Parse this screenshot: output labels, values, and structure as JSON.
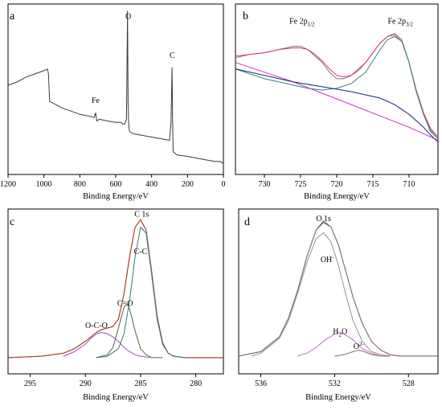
{
  "figure": {
    "background": "#ffffff"
  },
  "chart_data": [
    {
      "panel": "a",
      "type": "line",
      "xlabel": "Binding Energy/eV",
      "ylabel": "",
      "xlim": [
        1200,
        0
      ],
      "ylim": [
        0,
        1
      ],
      "xticks": [
        1200,
        1000,
        800,
        600,
        400,
        200,
        0
      ],
      "yticks": [],
      "grid": false,
      "annotations": [
        {
          "text": "O",
          "x": 530,
          "y": 0.94
        },
        {
          "text": "C",
          "x": 285,
          "y": 0.7
        },
        {
          "text": "Fe",
          "x": 712,
          "y": 0.42
        }
      ],
      "series": [
        {
          "color": "#3a3a3a",
          "x": [
            1200,
            1150,
            1100,
            1050,
            1000,
            980,
            975,
            968,
            950,
            900,
            850,
            800,
            750,
            720,
            712,
            705,
            690,
            650,
            600,
            570,
            560,
            550,
            540,
            534,
            531,
            528,
            525,
            520,
            500,
            450,
            400,
            350,
            300,
            292,
            286,
            283,
            280,
            270,
            260,
            200,
            150,
            100,
            50,
            20,
            5,
            0
          ],
          "y": [
            0.53,
            0.55,
            0.58,
            0.6,
            0.62,
            0.63,
            0.6,
            0.43,
            0.42,
            0.39,
            0.37,
            0.35,
            0.34,
            0.33,
            0.36,
            0.31,
            0.32,
            0.31,
            0.3,
            0.3,
            0.29,
            0.29,
            0.32,
            0.99,
            0.42,
            0.3,
            0.25,
            0.24,
            0.23,
            0.22,
            0.21,
            0.2,
            0.19,
            0.3,
            0.64,
            0.3,
            0.12,
            0.11,
            0.1,
            0.09,
            0.08,
            0.07,
            0.06,
            0.06,
            0.05,
            0.05
          ]
        }
      ]
    },
    {
      "panel": "b",
      "type": "line",
      "xlabel": "Binding Energy/eV",
      "ylabel": "",
      "xlim": [
        734,
        706
      ],
      "ylim": [
        0,
        1
      ],
      "xticks": [
        730,
        725,
        720,
        715,
        710
      ],
      "yticks": [],
      "grid": false,
      "annotations": [
        {
          "text": "Fe 2p",
          "sub": "1/2",
          "x": 724.8,
          "y": 0.9
        },
        {
          "text": "Fe 2p",
          "sub": "3/2",
          "x": 711.2,
          "y": 0.9
        }
      ],
      "series": [
        {
          "color": "#777777",
          "x": [
            734,
            732,
            730,
            728,
            726,
            725,
            724,
            723,
            722,
            721,
            720,
            719,
            718,
            717,
            716,
            715,
            714,
            713,
            712,
            711,
            710,
            709,
            708,
            707,
            706
          ],
          "y": [
            0.69,
            0.71,
            0.72,
            0.74,
            0.76,
            0.76,
            0.74,
            0.7,
            0.66,
            0.6,
            0.56,
            0.56,
            0.58,
            0.62,
            0.66,
            0.72,
            0.78,
            0.82,
            0.84,
            0.8,
            0.66,
            0.48,
            0.34,
            0.24,
            0.2
          ]
        },
        {
          "color": "#e0386a",
          "x": [
            734,
            732,
            730,
            728,
            726,
            725,
            724,
            723,
            722,
            721,
            720,
            719,
            718,
            717,
            716,
            715,
            714,
            713,
            712,
            711,
            710,
            709,
            708,
            707,
            706
          ],
          "y": [
            0.7,
            0.71,
            0.72,
            0.74,
            0.75,
            0.75,
            0.74,
            0.71,
            0.67,
            0.62,
            0.58,
            0.57,
            0.58,
            0.61,
            0.66,
            0.72,
            0.78,
            0.82,
            0.83,
            0.79,
            0.66,
            0.49,
            0.35,
            0.25,
            0.2
          ]
        },
        {
          "color": "#2e8a7a",
          "x": [
            734,
            730,
            726,
            724,
            722,
            720,
            718,
            716,
            714,
            713,
            712,
            711,
            710,
            709,
            708,
            707,
            706
          ],
          "y": [
            0.62,
            0.56,
            0.52,
            0.5,
            0.49,
            0.5,
            0.53,
            0.6,
            0.74,
            0.8,
            0.82,
            0.79,
            0.66,
            0.48,
            0.34,
            0.23,
            0.19
          ]
        },
        {
          "color": "#cc33cc",
          "x": [
            734,
            730,
            726,
            722,
            718,
            714,
            710,
            708,
            706
          ],
          "y": [
            0.66,
            0.6,
            0.54,
            0.47,
            0.4,
            0.33,
            0.26,
            0.22,
            0.18
          ]
        },
        {
          "color": "#1a237e",
          "x": [
            734,
            730,
            726,
            722,
            718,
            714,
            712,
            710,
            708,
            707,
            706
          ],
          "y": [
            0.62,
            0.58,
            0.54,
            0.51,
            0.48,
            0.44,
            0.4,
            0.34,
            0.26,
            0.21,
            0.17
          ]
        }
      ]
    },
    {
      "panel": "c",
      "type": "line",
      "xlabel": "Binding Energy/eV",
      "ylabel": "",
      "xlim": [
        297,
        277.5
      ],
      "ylim": [
        0,
        1
      ],
      "xticks": [
        295,
        290,
        285,
        280
      ],
      "yticks": [],
      "grid": false,
      "annotations": [
        {
          "text": "C 1s",
          "x": 284.9,
          "y": 0.97
        },
        {
          "text": "C-C",
          "x": 285.0,
          "y": 0.72
        },
        {
          "text": "C=O",
          "x": 286.4,
          "y": 0.37
        },
        {
          "text": "O-C-O",
          "x": 289.0,
          "y": 0.22
        }
      ],
      "series": [
        {
          "color": "#3a3a3a",
          "x": [
            297,
            294,
            292,
            291,
            290,
            289,
            288.5,
            288,
            287.5,
            287,
            286.5,
            286,
            285.5,
            285,
            284.5,
            284,
            283.5,
            283,
            282.5,
            282,
            281,
            280,
            279,
            277.5
          ],
          "y": [
            0.02,
            0.03,
            0.05,
            0.08,
            0.13,
            0.19,
            0.21,
            0.22,
            0.23,
            0.28,
            0.45,
            0.7,
            0.9,
            0.95,
            0.88,
            0.6,
            0.3,
            0.12,
            0.05,
            0.03,
            0.02,
            0.02,
            0.02,
            0.02
          ]
        },
        {
          "color": "#b0401e",
          "x": [
            297,
            294,
            292,
            291,
            290,
            289,
            288.5,
            288,
            287.5,
            287,
            286.5,
            286,
            285.5,
            285,
            284.5,
            284,
            283.5,
            283,
            282.5,
            282,
            281,
            280,
            279,
            277.5
          ],
          "y": [
            0.02,
            0.03,
            0.05,
            0.08,
            0.13,
            0.19,
            0.21,
            0.22,
            0.23,
            0.28,
            0.45,
            0.7,
            0.9,
            0.95,
            0.88,
            0.6,
            0.3,
            0.12,
            0.05,
            0.03,
            0.02,
            0.02,
            0.02,
            0.02
          ]
        },
        {
          "color": "#2e7d7d",
          "x": [
            289,
            288,
            287,
            286.5,
            286,
            285.5,
            285,
            284.5,
            284,
            283.5,
            283,
            282.5,
            282,
            281
          ],
          "y": [
            0.02,
            0.03,
            0.08,
            0.18,
            0.4,
            0.7,
            0.9,
            0.86,
            0.58,
            0.28,
            0.11,
            0.05,
            0.03,
            0.02
          ]
        },
        {
          "color": "#4a6a3a",
          "x": [
            289,
            288,
            287.5,
            287,
            286.5,
            286.2,
            286,
            285.5,
            285,
            284.5,
            284,
            283
          ],
          "y": [
            0.02,
            0.04,
            0.09,
            0.22,
            0.36,
            0.38,
            0.35,
            0.2,
            0.08,
            0.04,
            0.02,
            0.02
          ]
        },
        {
          "color": "#a050c0",
          "x": [
            292,
            291,
            290,
            289.5,
            289,
            288.5,
            288,
            287.5,
            287,
            286.5,
            286,
            285.5,
            285,
            284
          ],
          "y": [
            0.03,
            0.06,
            0.11,
            0.15,
            0.18,
            0.19,
            0.18,
            0.16,
            0.13,
            0.09,
            0.06,
            0.04,
            0.03,
            0.02
          ]
        }
      ]
    },
    {
      "panel": "d",
      "type": "line",
      "xlabel": "Binding Energy/eV",
      "ylabel": "",
      "xlim": [
        537.2,
        526.4
      ],
      "ylim": [
        0,
        1
      ],
      "xticks": [
        536,
        532,
        528
      ],
      "yticks": [],
      "grid": false,
      "annotations": [
        {
          "text": "O 1s",
          "x": 532.6,
          "y": 0.94
        },
        {
          "text": "OH",
          "sup": "-",
          "x": 532.4,
          "y": 0.66
        },
        {
          "text": "H",
          "sub": "2",
          "after": "O",
          "x": 531.7,
          "y": 0.17
        },
        {
          "text": "O",
          "sup": "2-",
          "x": 530.7,
          "y": 0.07
        }
      ],
      "series": [
        {
          "color": "#555555",
          "x": [
            537.2,
            536,
            535,
            534.5,
            534,
            533.5,
            533,
            532.6,
            532.2,
            531.8,
            531.4,
            531,
            530.5,
            530,
            529.5,
            529,
            528.5,
            528,
            527,
            526.4
          ],
          "y": [
            0.02,
            0.05,
            0.15,
            0.28,
            0.47,
            0.7,
            0.88,
            0.94,
            0.9,
            0.78,
            0.6,
            0.42,
            0.24,
            0.12,
            0.06,
            0.03,
            0.02,
            0.02,
            0.02,
            0.02
          ]
        },
        {
          "color": "#8a7070",
          "x": [
            537.2,
            536,
            535,
            534.5,
            534,
            533.5,
            533,
            532.6,
            532.2,
            531.8,
            531.4,
            531,
            530.5,
            530,
            529.5,
            529,
            528.5,
            528,
            527,
            526.4
          ],
          "y": [
            0.02,
            0.05,
            0.15,
            0.28,
            0.47,
            0.7,
            0.88,
            0.93,
            0.9,
            0.78,
            0.6,
            0.42,
            0.24,
            0.12,
            0.06,
            0.03,
            0.02,
            0.02,
            0.02,
            0.02
          ]
        },
        {
          "color": "#9a9090",
          "x": [
            536.5,
            536,
            535,
            534.5,
            534,
            533.5,
            533,
            532.6,
            532.2,
            531.8,
            531.4,
            531,
            530.5,
            530,
            529.5,
            529
          ],
          "y": [
            0.02,
            0.04,
            0.14,
            0.26,
            0.45,
            0.66,
            0.82,
            0.86,
            0.8,
            0.64,
            0.44,
            0.26,
            0.12,
            0.05,
            0.03,
            0.02
          ]
        },
        {
          "color": "#cc66cc",
          "x": [
            534,
            533.5,
            533,
            532.5,
            532,
            531.8,
            531.5,
            531,
            530.5,
            530,
            529.5,
            529
          ],
          "y": [
            0.02,
            0.04,
            0.08,
            0.13,
            0.17,
            0.18,
            0.17,
            0.13,
            0.07,
            0.04,
            0.02,
            0.02
          ]
        },
        {
          "color": "#8a7070",
          "x": [
            532,
            531.5,
            531,
            530.7,
            530.4,
            530,
            529.5,
            529
          ],
          "y": [
            0.02,
            0.03,
            0.05,
            0.06,
            0.05,
            0.03,
            0.02,
            0.02
          ]
        }
      ]
    }
  ]
}
